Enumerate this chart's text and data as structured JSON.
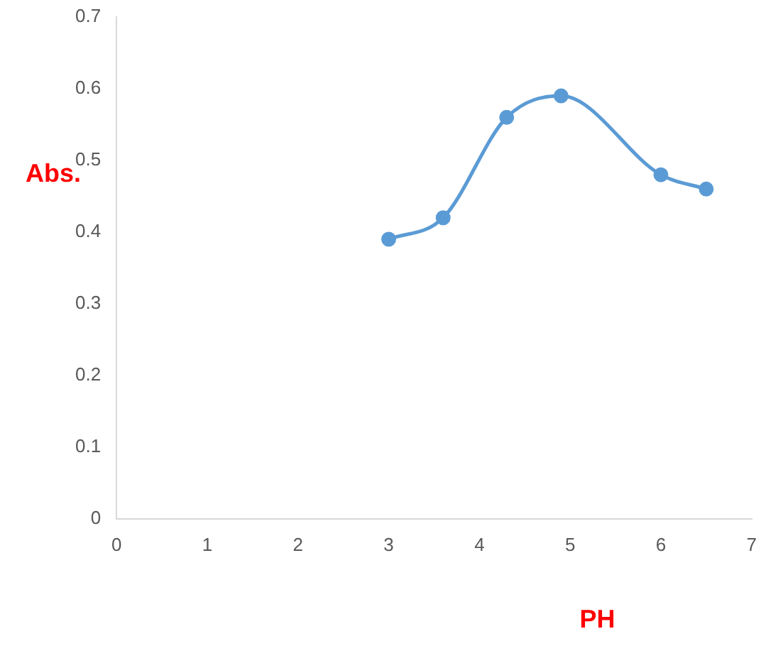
{
  "chart_data": {
    "type": "line",
    "xlabel": "PH",
    "ylabel": "Abs.",
    "x": [
      3,
      3.6,
      4.3,
      4.9,
      6,
      6.5
    ],
    "series": [
      {
        "color": "#5b9bd5",
        "values": [
          0.39,
          0.42,
          0.56,
          0.59,
          0.48,
          0.46
        ]
      }
    ],
    "xlim": [
      0,
      7
    ],
    "xticks": [
      0,
      1,
      2,
      3,
      4,
      5,
      6,
      7
    ],
    "ylim": [
      0,
      0.7
    ],
    "yticks": [
      0,
      0.1,
      0.2,
      0.3,
      0.4,
      0.5,
      0.6,
      0.7
    ],
    "grid": false,
    "legend": false,
    "marker": "circle",
    "line_style": "solid"
  }
}
